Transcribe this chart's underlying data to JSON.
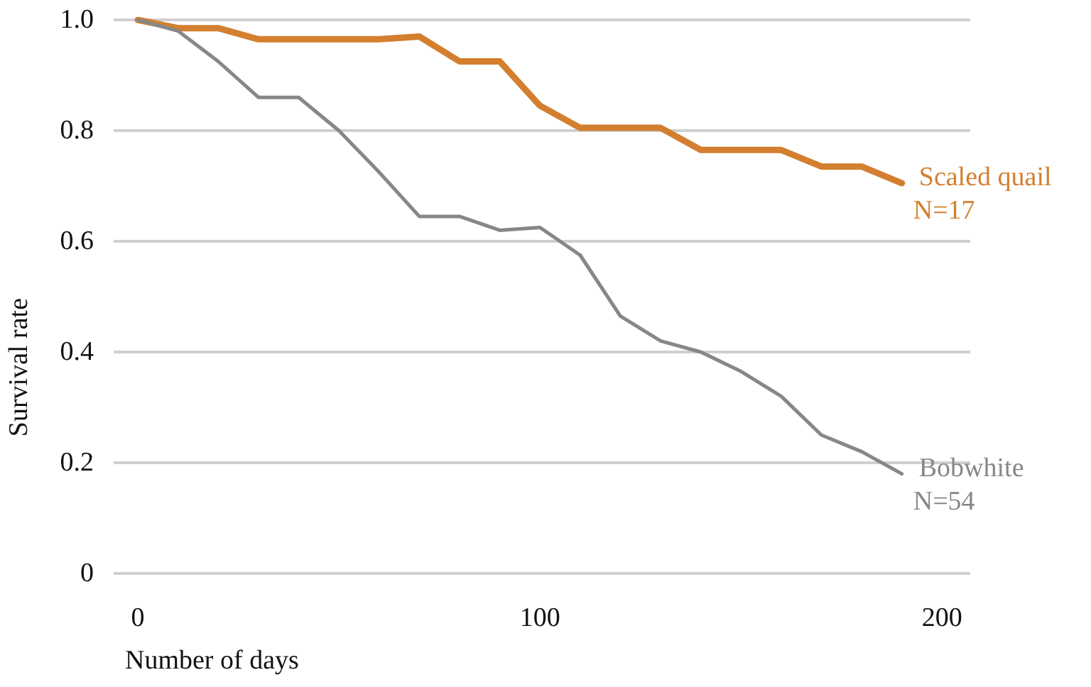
{
  "chart_data": {
    "type": "line",
    "xlabel": "Number of days",
    "ylabel": "Survival rate",
    "x": [
      0,
      10,
      20,
      30,
      40,
      50,
      60,
      70,
      80,
      90,
      100,
      110,
      120,
      130,
      140,
      150,
      160,
      170,
      180,
      190
    ],
    "series": [
      {
        "name": "Scaled quail",
        "color": "#d37f2f",
        "values": [
          1.0,
          0.985,
          0.985,
          0.965,
          0.965,
          0.965,
          0.965,
          0.97,
          0.925,
          0.925,
          0.845,
          0.805,
          0.805,
          0.805,
          0.765,
          0.765,
          0.765,
          0.735,
          0.735,
          0.705
        ]
      },
      {
        "name": "Bobwhite",
        "color": "#878787",
        "values": [
          1.0,
          0.98,
          0.925,
          0.86,
          0.86,
          0.8,
          0.725,
          0.645,
          0.645,
          0.62,
          0.625,
          0.575,
          0.465,
          0.42,
          0.4,
          0.365,
          0.32,
          0.25,
          0.22,
          0.18
        ]
      }
    ],
    "annotations": [
      {
        "text": "N=17",
        "x": 190,
        "y": 0.705
      },
      {
        "text": "N=54",
        "x": 190,
        "y": 0.18
      }
    ],
    "xlim": [
      -6,
      207
    ],
    "xticks": [
      0,
      100,
      200
    ],
    "ylim": [
      0,
      1
    ],
    "yticks": [
      0,
      0.2,
      0.4,
      0.6,
      0.8,
      {
        "value": 1,
        "label": "1.0"
      }
    ],
    "grid": "y",
    "legend": false,
    "marker": "none",
    "line_style": "solid"
  }
}
